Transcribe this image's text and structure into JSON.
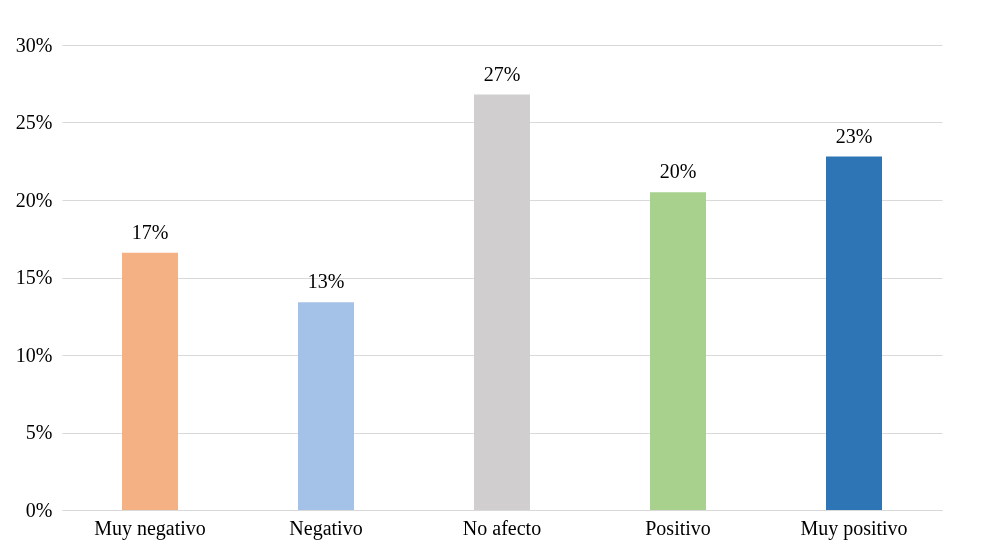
{
  "chart_data": {
    "type": "bar",
    "categories": [
      "Muy negativo",
      "Negativo",
      "No afecto",
      "Positivo",
      "Muy positivo"
    ],
    "values": [
      16.6,
      13.4,
      26.8,
      20.5,
      22.8
    ],
    "value_labels": [
      "17%",
      "13%",
      "27%",
      "20%",
      "23%"
    ],
    "colors": [
      "#f4b183",
      "#a4c2e8",
      "#d0cece",
      "#a9d18e",
      "#2e75b6"
    ],
    "ylim": [
      0,
      30
    ],
    "yticks": [
      {
        "value": 0,
        "label": "0%"
      },
      {
        "value": 5,
        "label": "5%"
      },
      {
        "value": 10,
        "label": "10%"
      },
      {
        "value": 15,
        "label": "15%"
      },
      {
        "value": 20,
        "label": "20%"
      },
      {
        "value": 25,
        "label": "25%"
      },
      {
        "value": 30,
        "label": "30%"
      }
    ],
    "grid": "y",
    "legend": false
  }
}
